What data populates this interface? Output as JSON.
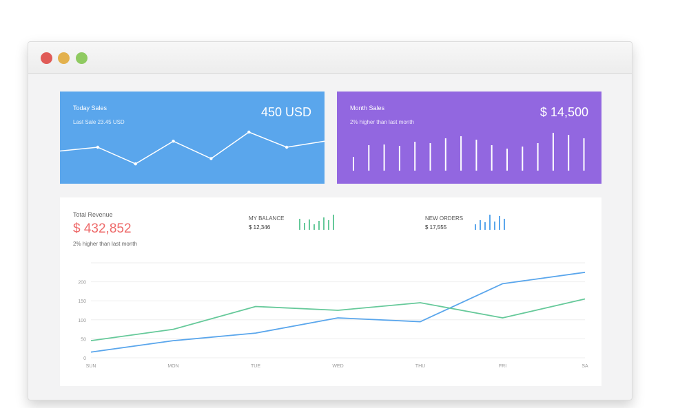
{
  "cards": {
    "today_sales": {
      "title": "Today Sales",
      "subtitle": "Last Sale 23.45 USD",
      "value": "450 USD",
      "sparkline": [
        35,
        40,
        18,
        48,
        25,
        60,
        40,
        48
      ]
    },
    "month_sales": {
      "title": "Month Sales",
      "subtitle": "2% higher than last month",
      "value": "$ 14,500",
      "bars": [
        20,
        37,
        38,
        36,
        42,
        40,
        47,
        50,
        45,
        37,
        32,
        35,
        40,
        55,
        52,
        47
      ]
    }
  },
  "revenue": {
    "title": "Total Revenue",
    "value": "$ 432,852",
    "subtitle": "2% higher than last month"
  },
  "balance": {
    "label": "MY BALANCE",
    "value": "$ 12,346",
    "bars": [
      16,
      10,
      15,
      8,
      13,
      18,
      14,
      22
    ]
  },
  "orders": {
    "label": "NEW ORDERS",
    "value": "$ 17,555",
    "bars": [
      8,
      14,
      11,
      22,
      12,
      20,
      16
    ]
  },
  "colors": {
    "blue_card": "#5aa6ec",
    "purple_card": "#9267e0",
    "revenue_value": "#ee6a6a",
    "green": "#66c99a",
    "blue": "#5aa6ec"
  },
  "chart_data": {
    "type": "line",
    "x": [
      "SUN",
      "MON",
      "TUE",
      "WED",
      "THU",
      "FRI",
      "SA"
    ],
    "yticks": [
      0,
      50,
      100,
      150,
      200
    ],
    "ylim": [
      0,
      250
    ],
    "series": [
      {
        "values": [
          15,
          45,
          65,
          105,
          95,
          195,
          225
        ],
        "color": "#5aa6ec"
      },
      {
        "values": [
          45,
          75,
          135,
          125,
          145,
          105,
          155
        ],
        "color": "#66c99a"
      }
    ]
  }
}
